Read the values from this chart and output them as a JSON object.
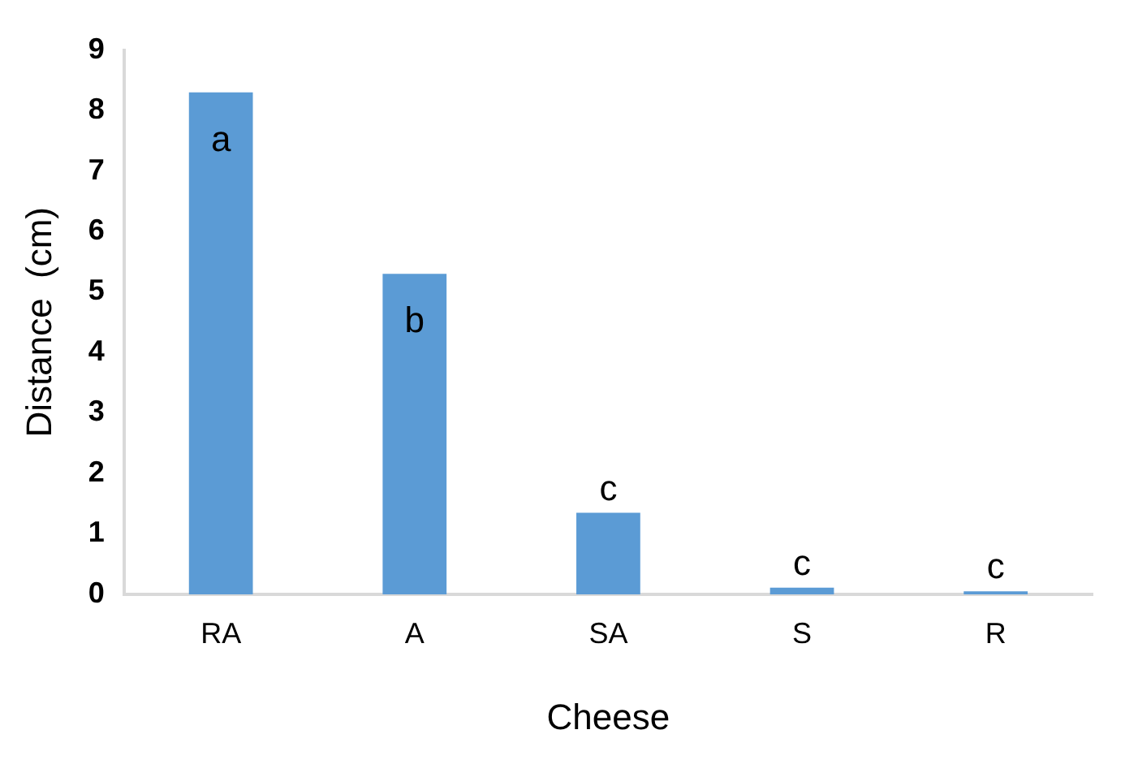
{
  "chart_data": {
    "type": "bar",
    "xlabel": "Cheese",
    "ylabel": "Distance  (cm)",
    "categories": [
      "RA",
      "A",
      "SA",
      "S",
      "R"
    ],
    "values": [
      8.3,
      5.3,
      1.35,
      0.11,
      0.05
    ],
    "color": "#5b9bd5",
    "ylim": [
      0,
      9
    ],
    "yticks": [
      0,
      1,
      2,
      3,
      4,
      5,
      6,
      7,
      8,
      9
    ],
    "grid": false,
    "legend": false,
    "annotations": [
      "a",
      "b",
      "c",
      "c",
      "c"
    ]
  }
}
